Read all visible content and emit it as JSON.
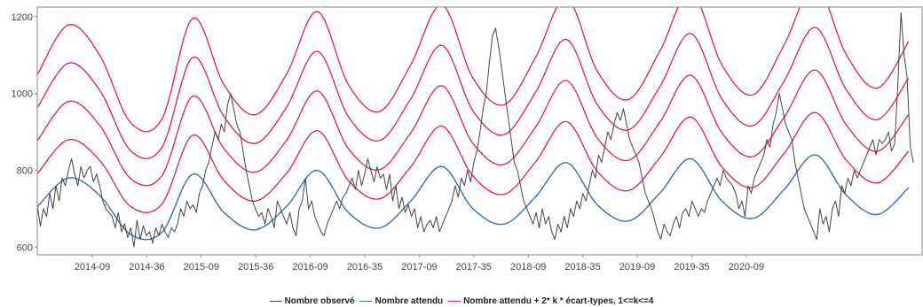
{
  "chart_data": {
    "type": "line",
    "title": "",
    "xlabel": "",
    "ylabel": "",
    "ylim": [
      580,
      1225
    ],
    "y_ticks": [
      600,
      800,
      1000,
      1200
    ],
    "x_ticks": [
      "2014-09",
      "2014-36",
      "2015-09",
      "2015-36",
      "2016-09",
      "2016-35",
      "2017-09",
      "2017-35",
      "2018-09",
      "2018-35",
      "2019-09",
      "2019-35",
      "2020-09"
    ],
    "x_start": "2014-01",
    "x_end": "2020-12",
    "grid": false,
    "legend_position": "bottom",
    "colors": {
      "observed": "#444444",
      "expected": "#3a6fa8",
      "thresholds": "#e8185f",
      "axis": "#888888"
    },
    "expected": {
      "week_points": [
        0,
        13,
        26,
        39,
        52,
        65,
        78,
        91,
        104,
        117,
        130,
        143,
        156,
        169,
        182,
        195,
        208,
        221,
        234,
        247,
        260,
        273,
        286,
        299,
        312,
        325,
        338,
        351,
        364
      ],
      "values": [
        705,
        780,
        735,
        633,
        638,
        790,
        690,
        645,
        705,
        800,
        690,
        650,
        720,
        810,
        700,
        660,
        730,
        820,
        710,
        668,
        740,
        830,
        720,
        675,
        750,
        840,
        735,
        685,
        755
      ]
    },
    "threshold_offsets": [
      85,
      170,
      255,
      340
    ],
    "threshold_offset_width": 0.28,
    "observed": {
      "x_start_week": 0,
      "values": [
        710,
        655,
        700,
        680,
        740,
        700,
        760,
        720,
        780,
        760,
        800,
        830,
        790,
        760,
        810,
        780,
        800,
        810,
        770,
        790,
        760,
        720,
        700,
        690,
        680,
        650,
        690,
        640,
        660,
        625,
        650,
        600,
        670,
        620,
        655,
        630,
        640,
        610,
        650,
        630,
        660,
        640,
        625,
        650,
        640,
        660,
        700,
        680,
        720,
        700,
        710,
        690,
        740,
        760,
        800,
        820,
        860,
        900,
        880,
        920,
        900,
        970,
        1000,
        960,
        920,
        900,
        850,
        800,
        760,
        720,
        700,
        680,
        690,
        660,
        700,
        680,
        650,
        720,
        700,
        680,
        660,
        690,
        650,
        630,
        700,
        720,
        780,
        700,
        720,
        680,
        660,
        640,
        630,
        660,
        680,
        700,
        720,
        700,
        730,
        740,
        760,
        780,
        750,
        800,
        760,
        790,
        830,
        800,
        770,
        810,
        780,
        790,
        750,
        790,
        720,
        760,
        700,
        730,
        690,
        710,
        680,
        700,
        650,
        680,
        640,
        660,
        670,
        650,
        680,
        640,
        660,
        680,
        700,
        720,
        760,
        730,
        780,
        760,
        800,
        770,
        820,
        850,
        900,
        960,
        1000,
        1080,
        1150,
        1170,
        1120,
        1060,
        1000,
        940,
        880,
        820,
        800,
        760,
        720,
        700,
        680,
        660,
        690,
        650,
        700,
        660,
        680,
        640,
        620,
        660,
        640,
        680,
        650,
        700,
        680,
        720,
        700,
        740,
        720,
        760,
        800,
        780,
        840,
        820,
        860,
        900,
        880,
        920,
        950,
        930,
        960,
        920,
        880,
        860,
        840,
        820,
        780,
        740,
        720,
        700,
        670,
        640,
        620,
        660,
        640,
        630,
        660,
        680,
        650,
        690,
        700,
        680,
        720,
        700,
        680,
        700,
        690,
        720,
        740,
        760,
        780,
        760,
        800,
        780,
        770,
        760,
        740,
        700,
        720,
        680,
        760,
        740,
        780,
        800,
        820,
        840,
        880,
        860,
        920,
        950,
        1000,
        960,
        920,
        900,
        880,
        820,
        780,
        740,
        700,
        680,
        660,
        640,
        620,
        700,
        660,
        680,
        640,
        700,
        720,
        680,
        760,
        740,
        780,
        760,
        800,
        780,
        800,
        820,
        840,
        860,
        880,
        840,
        880,
        870,
        880,
        900,
        850,
        870,
        1020,
        1210,
        1100,
        1040,
        860,
        820
      ]
    },
    "series": [
      {
        "name": "Nombre observé"
      },
      {
        "name": "Nombre attendu"
      },
      {
        "name": "Nombre attendu + 2* k * écart-types, 1<=k<=4"
      }
    ]
  }
}
